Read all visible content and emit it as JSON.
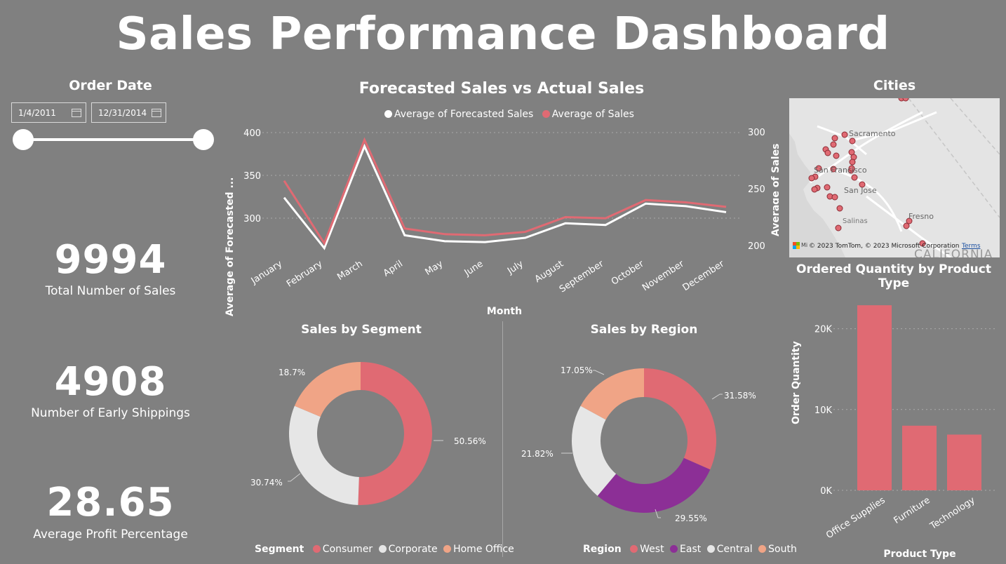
{
  "dashboard": {
    "title": "Sales Performance Dashboard"
  },
  "filter": {
    "title": "Order Date",
    "start_date": "1/4/2011",
    "end_date": "12/31/2014",
    "range_start_fraction": 0,
    "range_end_fraction": 1
  },
  "kpis": [
    {
      "value": "9994",
      "label": "Total Number of Sales"
    },
    {
      "value": "4908",
      "label": "Number of Early Shippings"
    },
    {
      "value": "28.65",
      "label": "Average Profit Percentage"
    }
  ],
  "line_chart": {
    "title": "Forecasted Sales vs Actual Sales",
    "legend": [
      {
        "label": "Average of Forecasted Sales",
        "color": "#ffffff"
      },
      {
        "label": "Average of Sales",
        "color": "#e06a73"
      }
    ],
    "y_left_label": "Average of Forecasted ...",
    "y_right_label": "Average of Sales",
    "x_label": "Month"
  },
  "segment_chart": {
    "title": "Sales by Segment",
    "legend_title": "Segment",
    "labels": [
      "50.56%",
      "30.74%",
      "18.7%"
    ]
  },
  "region_chart": {
    "title": "Sales by Region",
    "legend_title": "Region",
    "labels": [
      "31.58%",
      "29.55%",
      "21.82%",
      "17.05%"
    ]
  },
  "map": {
    "title": "Cities",
    "places": [
      "Sacramento",
      "San Francisco",
      "San Jose",
      "Salinas",
      "Fresno",
      "CALIFORNIA"
    ],
    "attribution": "© 2023 TomTom, © 2023 Microsoft Corporation",
    "terms": "Terms",
    "logo_text": "Mi"
  },
  "bar_chart": {
    "title": "Ordered Quantity by Product Type",
    "x_label": "Product Type",
    "y_label": "Order Quantity"
  },
  "chart_data": [
    {
      "type": "line",
      "title": "Forecasted Sales vs Actual Sales",
      "categories": [
        "January",
        "February",
        "March",
        "April",
        "May",
        "June",
        "July",
        "August",
        "September",
        "October",
        "November",
        "December"
      ],
      "xlabel": "Month",
      "series": [
        {
          "name": "Average of Forecasted Sales",
          "axis": "left",
          "color": "#ffffff",
          "values": [
            324,
            265,
            384,
            280,
            273,
            272,
            277,
            294,
            292,
            317,
            314,
            307
          ]
        },
        {
          "name": "Average of Sales",
          "axis": "right",
          "color": "#e06a73",
          "values": [
            257,
            202,
            293,
            215,
            210,
            209,
            212,
            225,
            224,
            240,
            238,
            234
          ]
        }
      ],
      "y_left": {
        "label": "Average of Forecasted ...",
        "ticks": [
          300,
          350,
          400
        ],
        "range": [
          268,
          400
        ]
      },
      "y_right": {
        "label": "Average of Sales",
        "ticks": [
          200,
          250,
          300
        ],
        "range": [
          200,
          300
        ]
      },
      "grid": true,
      "legend_position": "top"
    },
    {
      "type": "pie",
      "title": "Sales by Segment",
      "donut": true,
      "legend_title": "Segment",
      "categories": [
        "Consumer",
        "Corporate",
        "Home Office"
      ],
      "values": [
        50.56,
        30.74,
        18.7
      ],
      "colors": [
        "#e06a73",
        "#e6e6e6",
        "#f0a486"
      ],
      "legend_position": "bottom"
    },
    {
      "type": "pie",
      "title": "Sales by Region",
      "donut": true,
      "legend_title": "Region",
      "categories": [
        "West",
        "East",
        "Central",
        "South"
      ],
      "values": [
        31.58,
        29.55,
        21.82,
        17.05
      ],
      "colors": [
        "#e06a73",
        "#8c2f96",
        "#e6e6e6",
        "#f0a486"
      ],
      "legend_position": "bottom"
    },
    {
      "type": "bar",
      "title": "Ordered Quantity by Product Type",
      "categories": [
        "Office Supplies",
        "Furniture",
        "Technology"
      ],
      "values": [
        22900,
        8000,
        6900
      ],
      "color": "#e06a73",
      "xlabel": "Product Type",
      "ylabel": "Order Quantity",
      "yticks": [
        "0K",
        "10K",
        "20K"
      ],
      "ylim": [
        0,
        23000
      ],
      "grid": true
    }
  ]
}
